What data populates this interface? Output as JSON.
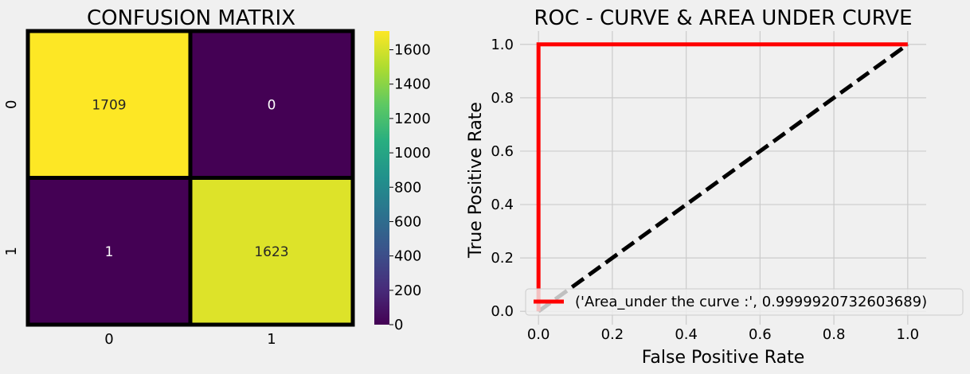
{
  "chart_data": [
    {
      "type": "heatmap",
      "title": "CONFUSION MATRIX",
      "row_labels": [
        "0",
        "1"
      ],
      "col_labels": [
        "0",
        "1"
      ],
      "values": [
        [
          1709,
          0
        ],
        [
          1,
          1623
        ]
      ],
      "cell_labels": [
        [
          "1709",
          "0"
        ],
        [
          "1",
          "1623"
        ]
      ],
      "colormap": "viridis",
      "colorbar": {
        "range": [
          0,
          1709
        ],
        "ticks": [
          0,
          200,
          400,
          600,
          800,
          1000,
          1200,
          1400,
          1600
        ],
        "tick_labels": [
          "0",
          "200",
          "400",
          "600",
          "800",
          "1000",
          "1200",
          "1400",
          "1600"
        ]
      }
    },
    {
      "type": "line",
      "title": "ROC - CURVE & AREA UNDER CURVE",
      "xlabel": "False Positive Rate",
      "ylabel": "True Positive Rate",
      "xlim": [
        -0.05,
        1.05
      ],
      "ylim": [
        -0.05,
        1.05
      ],
      "grid": true,
      "legend_position": "lower-right",
      "x_ticks": [
        0.0,
        0.2,
        0.4,
        0.6,
        0.8,
        1.0
      ],
      "x_tick_labels": [
        "0.0",
        "0.2",
        "0.4",
        "0.6",
        "0.8",
        "1.0"
      ],
      "y_ticks": [
        0.0,
        0.2,
        0.4,
        0.6,
        0.8,
        1.0
      ],
      "y_tick_labels": [
        "0.0",
        "0.2",
        "0.4",
        "0.6",
        "0.8",
        "1.0"
      ],
      "series": [
        {
          "name": "('Area_under the curve :', 0.9999920732603689)",
          "color": "#ff0000",
          "style": "solid",
          "x": [
            0.0,
            0.0,
            0.0,
            1.0
          ],
          "y": [
            0.0,
            0.0,
            1.0,
            1.0
          ]
        },
        {
          "color": "#000000",
          "style": "dashed",
          "x": [
            0.0,
            1.0
          ],
          "y": [
            0.0,
            1.0
          ]
        }
      ]
    }
  ]
}
